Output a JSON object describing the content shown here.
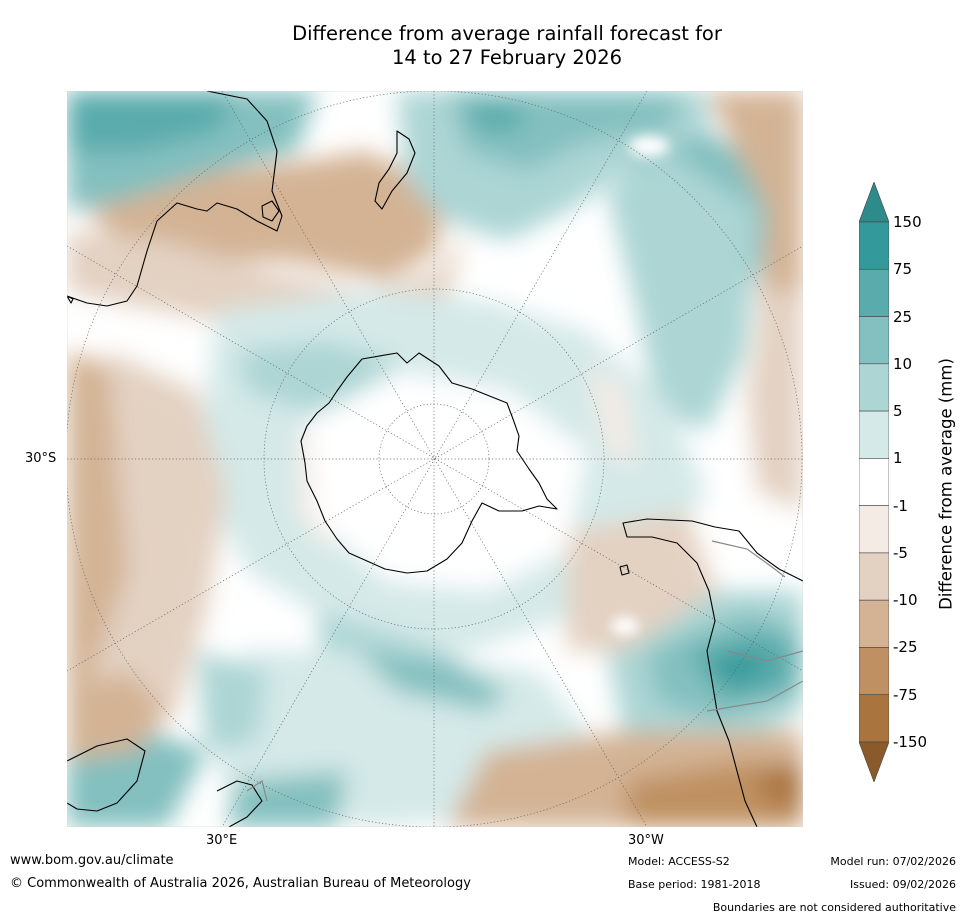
{
  "title": {
    "line1": "Difference from average rainfall forecast for",
    "line2": "14 to 27 February 2026"
  },
  "map": {
    "projection": "south-polar-stereographic",
    "lat_label": "30°S",
    "lon_labels": [
      "30°E",
      "30°W"
    ],
    "colors": {
      "ocean_neutral": "#ffffff",
      "coastline": "#000000",
      "boundary": "#888888",
      "graticule": "#666666"
    }
  },
  "colorbar": {
    "title": "Difference from average (mm)",
    "ticks": [
      "150",
      "75",
      "25",
      "10",
      "5",
      "1",
      "-1",
      "-5",
      "-10",
      "-25",
      "-75",
      "-150"
    ],
    "colors": [
      "#2e8b8b",
      "#33999a",
      "#5aabac",
      "#83c0bf",
      "#acd5d4",
      "#d4e9e8",
      "#ffffff",
      "#f4ebe5",
      "#e3d1c2",
      "#d3b394",
      "#bf9162",
      "#aa743f",
      "#8b5a2b"
    ]
  },
  "footer": {
    "website": "www.bom.gov.au/climate",
    "copyright": "© Commonwealth of Australia 2026, Australian Bureau of Meteorology",
    "model": "Model: ACCESS-S2",
    "base_period": "Base period: 1981-2018",
    "model_run": "Model run: 07/02/2026",
    "issued": "Issued: 09/02/2026",
    "disclaimer": "Boundaries are not considered authoritative"
  }
}
